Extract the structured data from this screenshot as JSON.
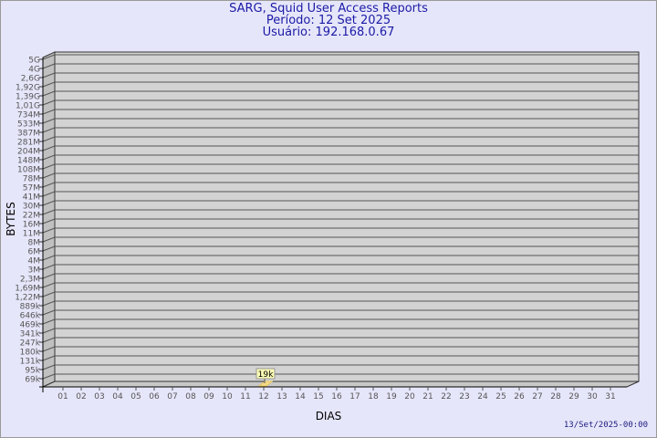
{
  "header": {
    "title": "SARG, Squid User Access Reports",
    "period": "Período: 12 Set 2025",
    "user": "Usuário: 192.168.0.67"
  },
  "footer": {
    "generated": "13/Set/2025-00:00"
  },
  "colors": {
    "background": "#e6e6fa",
    "plot": "#d3d3d3",
    "title": "#1a1aa6",
    "bar": "#f5dc8c"
  },
  "chart_data": {
    "type": "bar",
    "xlabel": "DIAS",
    "ylabel": "BYTES",
    "y_scale": "log",
    "y_ticks": [
      "5G",
      "4G",
      "2,6G",
      "1,92G",
      "1,39G",
      "1,01G",
      "734M",
      "533M",
      "387M",
      "281M",
      "204M",
      "148M",
      "108M",
      "78M",
      "57M",
      "41M",
      "30M",
      "22M",
      "16M",
      "11M",
      "8M",
      "6M",
      "4M",
      "3M",
      "2,3M",
      "1,69M",
      "1,22M",
      "889k",
      "646k",
      "469k",
      "341k",
      "247k",
      "180k",
      "131k",
      "95k",
      "69k"
    ],
    "categories": [
      "01",
      "02",
      "03",
      "04",
      "05",
      "06",
      "07",
      "08",
      "09",
      "10",
      "11",
      "12",
      "13",
      "14",
      "15",
      "16",
      "17",
      "18",
      "19",
      "20",
      "21",
      "22",
      "23",
      "24",
      "25",
      "26",
      "27",
      "28",
      "29",
      "30",
      "31"
    ],
    "bars": [
      {
        "day": "12",
        "value": 19000,
        "label": "19k"
      }
    ],
    "grid": true
  }
}
